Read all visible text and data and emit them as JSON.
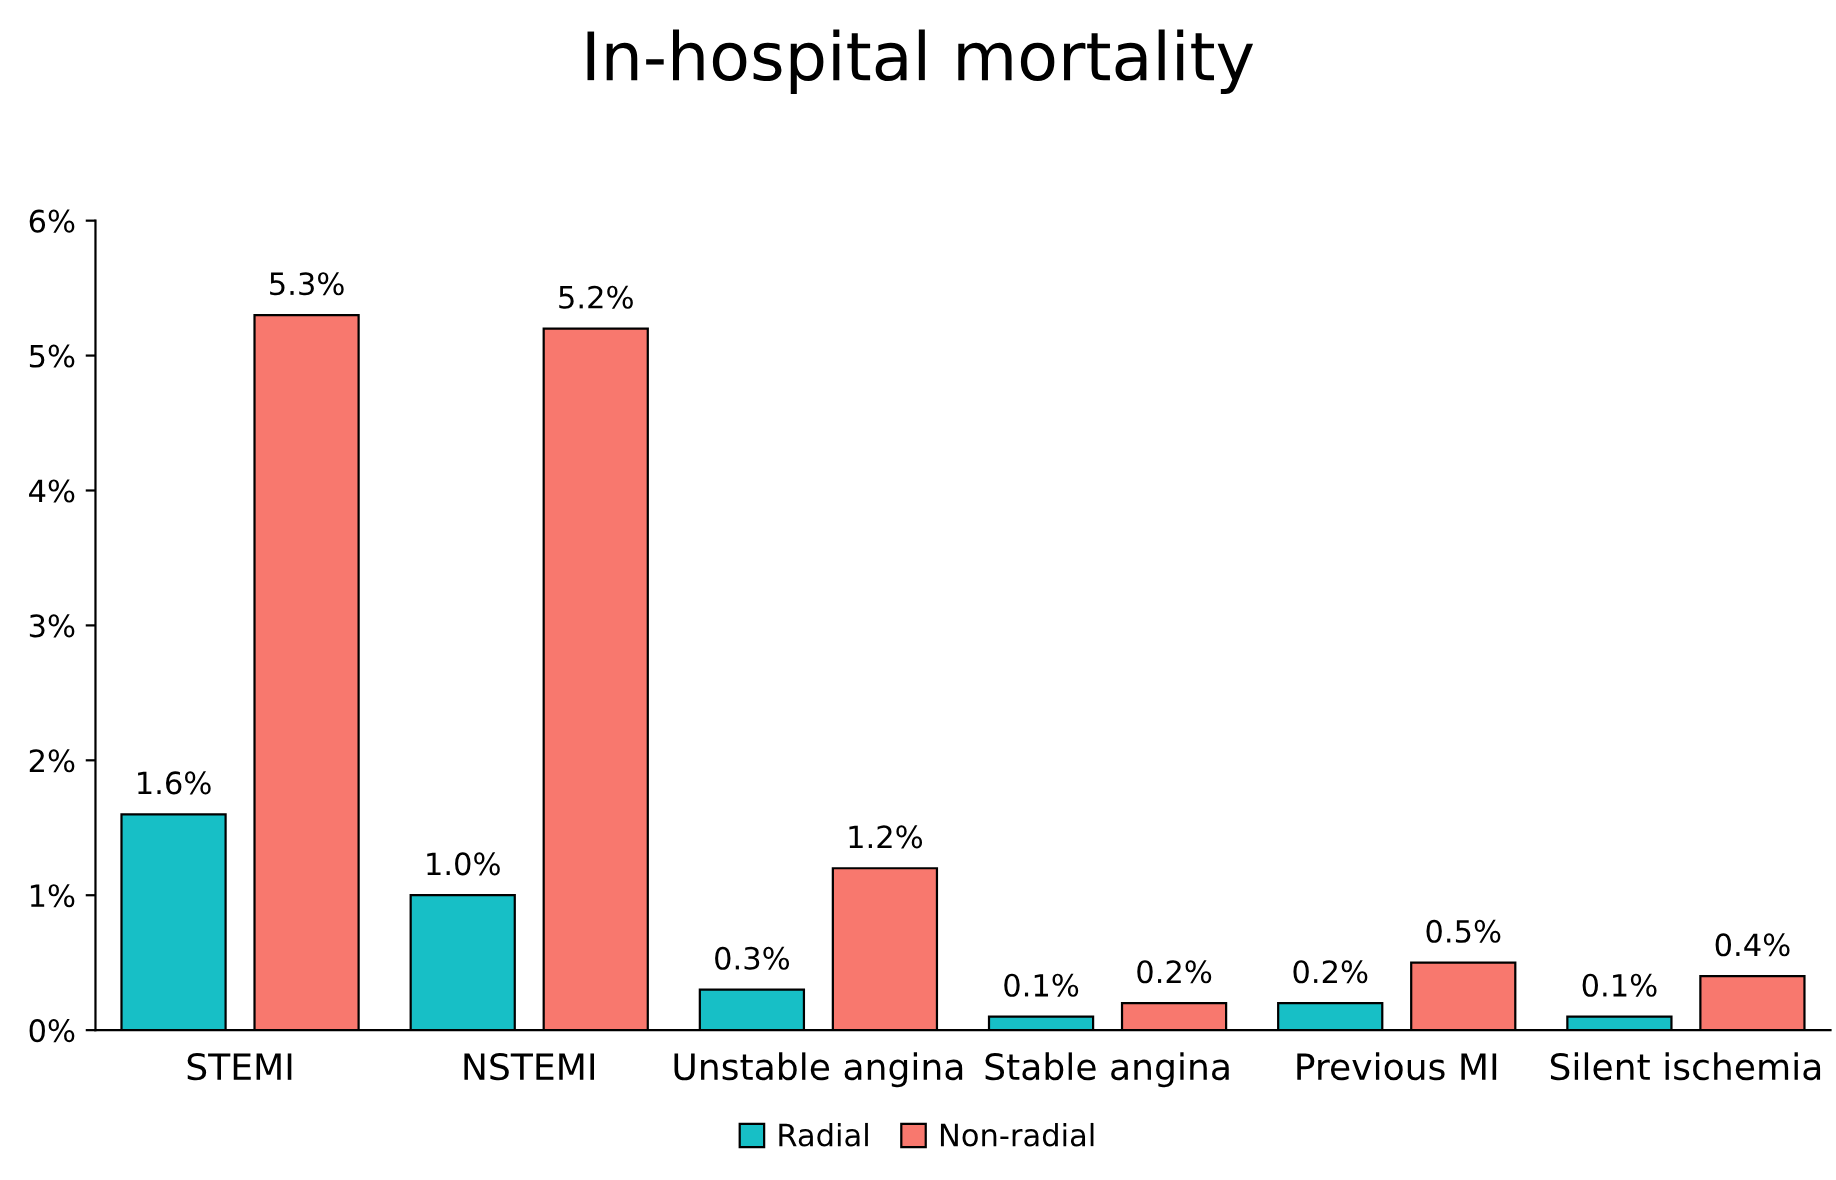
{
  "chart_data": {
    "type": "bar",
    "title": "In-hospital mortality",
    "categories": [
      "STEMI",
      "NSTEMI",
      "Unstable angina",
      "Stable angina",
      "Previous MI",
      "Silent ischemia"
    ],
    "series": [
      {
        "name": "Radial",
        "color": "#17bfc6",
        "values": [
          1.6,
          1.0,
          0.3,
          0.1,
          0.2,
          0.1
        ],
        "value_labels": [
          "1.6%",
          "1.0%",
          "0.3%",
          "0.1%",
          "0.2%",
          "0.1%"
        ]
      },
      {
        "name": "Non-radial",
        "color": "#f8786e",
        "values": [
          5.3,
          5.2,
          1.2,
          0.2,
          0.5,
          0.4
        ],
        "value_labels": [
          "5.3%",
          "5.2%",
          "1.2%",
          "0.2%",
          "0.5%",
          "0.4%"
        ]
      }
    ],
    "ylim": [
      0,
      6
    ],
    "yticks": [
      {
        "value": 0,
        "label": "0%"
      },
      {
        "value": 1,
        "label": "1%"
      },
      {
        "value": 2,
        "label": "2%"
      },
      {
        "value": 3,
        "label": "3%"
      },
      {
        "value": 4,
        "label": "4%"
      },
      {
        "value": 5,
        "label": "5%"
      },
      {
        "value": 6,
        "label": "6%"
      }
    ],
    "grid": false,
    "legend": "bottom"
  }
}
